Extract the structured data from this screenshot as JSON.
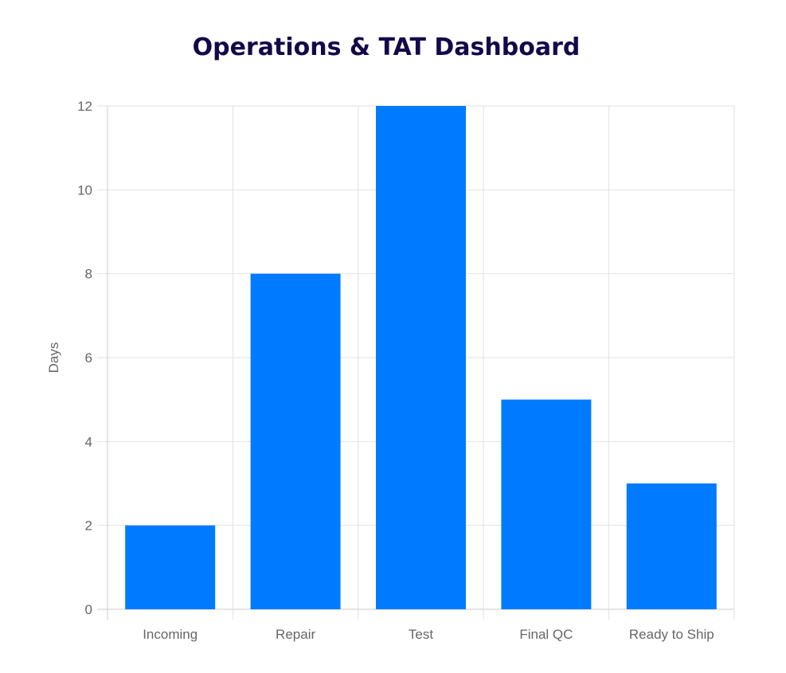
{
  "title": "Operations & TAT Dashboard",
  "chart_data": {
    "type": "bar",
    "title": "Operations & TAT Dashboard",
    "categories": [
      "Incoming",
      "Repair",
      "Test",
      "Final QC",
      "Ready to Ship"
    ],
    "values": [
      2,
      8,
      12,
      5,
      3
    ],
    "xlabel": "",
    "ylabel": "Days",
    "ylim": [
      0,
      12
    ],
    "yticks": [
      "0",
      "2",
      "4",
      "6",
      "8",
      "10",
      "12"
    ],
    "grid": true,
    "legend": "none",
    "bar_color": "#007bff"
  }
}
